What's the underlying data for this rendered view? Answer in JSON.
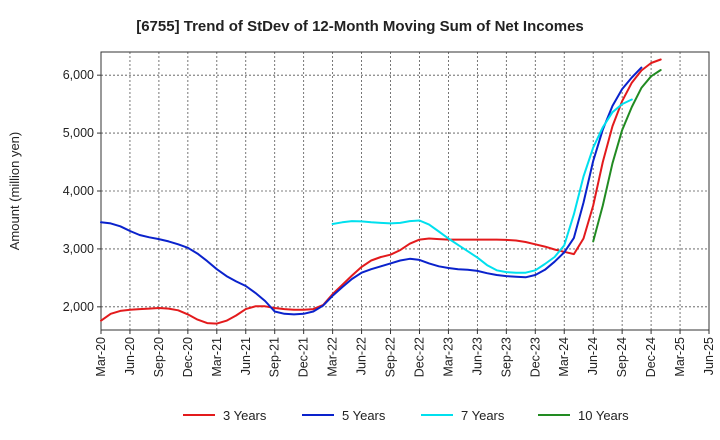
{
  "chart_data": {
    "type": "line",
    "title": "[6755]  Trend of StDev of 12-Month Moving Sum of Net Incomes",
    "ylabel": "Amount (million yen)",
    "xlabel": "",
    "ylim": [
      1600,
      6400
    ],
    "grid": true,
    "legend_position": "bottom",
    "x_ticks": [
      "Mar-20",
      "Jun-20",
      "Sep-20",
      "Dec-20",
      "Mar-21",
      "Jun-21",
      "Sep-21",
      "Dec-21",
      "Mar-22",
      "Jun-22",
      "Sep-22",
      "Dec-22",
      "Mar-23",
      "Jun-23",
      "Sep-23",
      "Dec-23",
      "Mar-24",
      "Jun-24",
      "Sep-24",
      "Dec-24",
      "Mar-25",
      "Jun-25"
    ],
    "y_ticks": [
      {
        "value": 2000,
        "label": "2,000"
      },
      {
        "value": 3000,
        "label": "3,000"
      },
      {
        "value": 4000,
        "label": "4,000"
      },
      {
        "value": 5000,
        "label": "5,000"
      },
      {
        "value": 6000,
        "label": "6,000"
      }
    ],
    "series": [
      {
        "name": "3 Years",
        "color": "#e31a1c",
        "start": "Mar-20",
        "values": [
          1760,
          1880,
          1930,
          1950,
          1960,
          1970,
          1980,
          1970,
          1940,
          1870,
          1780,
          1720,
          1710,
          1760,
          1850,
          1960,
          2010,
          2010,
          1980,
          1960,
          1950,
          1950,
          1960,
          2030,
          2220,
          2380,
          2540,
          2690,
          2800,
          2860,
          2900,
          2980,
          3090,
          3160,
          3180,
          3170,
          3160,
          3160,
          3160,
          3160,
          3160,
          3160,
          3155,
          3145,
          3120,
          3080,
          3040,
          2990,
          2950,
          2910,
          3180,
          3750,
          4500,
          5120,
          5550,
          5870,
          6080,
          6210,
          6270
        ]
      },
      {
        "name": "5 Years",
        "color": "#0a22cc",
        "start": "Mar-20",
        "values": [
          3460,
          3440,
          3390,
          3310,
          3240,
          3200,
          3170,
          3130,
          3080,
          3020,
          2920,
          2790,
          2650,
          2530,
          2440,
          2360,
          2240,
          2100,
          1920,
          1880,
          1870,
          1880,
          1920,
          2020,
          2190,
          2340,
          2480,
          2590,
          2650,
          2700,
          2750,
          2800,
          2830,
          2810,
          2750,
          2700,
          2670,
          2650,
          2640,
          2620,
          2580,
          2550,
          2530,
          2520,
          2510,
          2550,
          2640,
          2780,
          2940,
          3190,
          3800,
          4520,
          5060,
          5470,
          5760,
          5960,
          6130
        ]
      },
      {
        "name": "7 Years",
        "color": "#00e0ee",
        "start": "Mar-22",
        "values": [
          3430,
          3460,
          3480,
          3475,
          3460,
          3450,
          3440,
          3450,
          3480,
          3490,
          3420,
          3300,
          3180,
          3070,
          2960,
          2850,
          2720,
          2630,
          2600,
          2590,
          2590,
          2630,
          2740,
          2860,
          3060,
          3600,
          4250,
          4750,
          5100,
          5360,
          5500,
          5580
        ]
      },
      {
        "name": "10 Years",
        "color": "#228b22",
        "start": "Jun-24",
        "values": [
          3130,
          3750,
          4480,
          5050,
          5450,
          5780,
          5980,
          6090
        ]
      }
    ]
  }
}
